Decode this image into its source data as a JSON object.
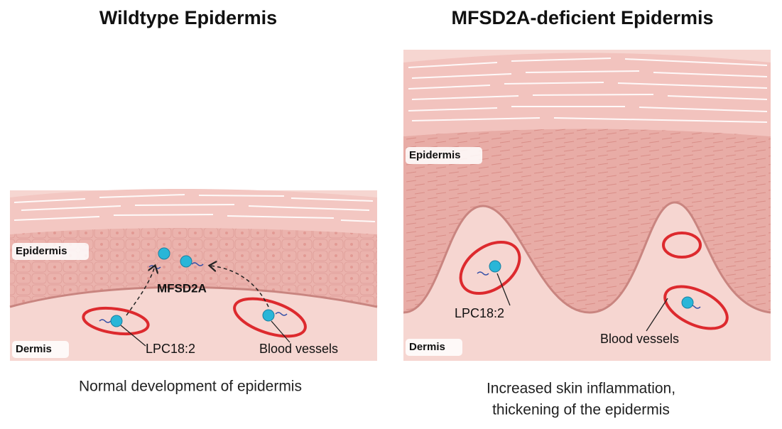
{
  "panels": [
    {
      "title": "Wildtype Epidermis",
      "epidermis_label": "Epidermis",
      "dermis_label": "Dermis",
      "transporter_label": "MFSD2A",
      "lipid_label": "LPC18:2",
      "vessel_label": "Blood vessels",
      "caption": [
        "Normal development of epidermis"
      ]
    },
    {
      "title": "MFSD2A-deficient Epidermis",
      "epidermis_label": "Epidermis",
      "dermis_label": "Dermis",
      "lipid_label": "LPC18:2",
      "vessel_label": "Blood vessels",
      "caption": [
        "Increased skin inflammation,",
        "thickening of the epidermis"
      ]
    }
  ]
}
